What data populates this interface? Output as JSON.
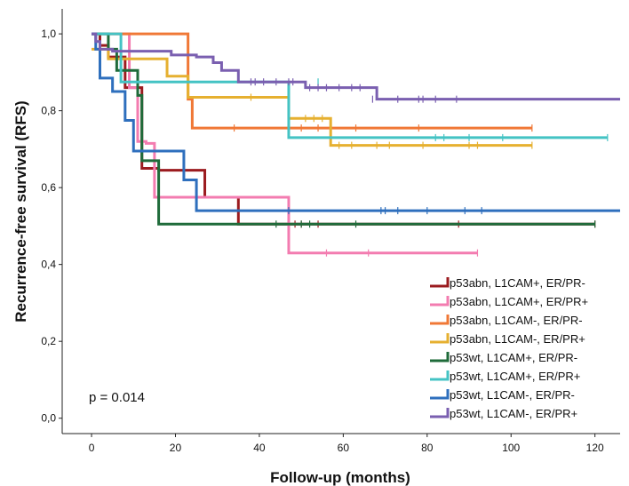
{
  "chart_data": {
    "type": "line",
    "step": true,
    "xlabel": "Follow-up (months)",
    "ylabel": "Recurrence-free survival (RFS)",
    "xlim": [
      -7,
      126
    ],
    "ylim": [
      -0.04,
      1.065
    ],
    "xticks": [
      0,
      20,
      40,
      60,
      80,
      100,
      120
    ],
    "yticks": [
      0.0,
      0.2,
      0.4,
      0.6,
      0.8,
      1.0
    ],
    "ytick_labels": [
      "0,0",
      "0,2",
      "0,4",
      "0,6",
      "0,8",
      "1,0"
    ],
    "grid": false,
    "legend_position": "bottom-right",
    "annotation": "p = 0.014",
    "series": [
      {
        "name": "p53abn, L1CAM+, ER/PR-",
        "color": "#9b1b1f",
        "x": [
          0,
          2,
          4,
          8,
          12,
          16,
          27,
          35,
          120
        ],
        "y": [
          1.0,
          0.97,
          0.94,
          0.86,
          0.65,
          0.645,
          0.575,
          0.505,
          0.505
        ],
        "censored": [
          [
            48.5,
            0.505
          ],
          [
            50,
            0.505
          ],
          [
            54,
            0.505
          ],
          [
            87.5,
            0.505
          ],
          [
            120,
            0.505
          ]
        ]
      },
      {
        "name": "p53abn, L1CAM+, ER/PR+",
        "color": "#f37cb0",
        "x": [
          0,
          9,
          11,
          13,
          15,
          47,
          92
        ],
        "y": [
          1.0,
          0.86,
          0.72,
          0.715,
          0.575,
          0.43,
          0.43
        ],
        "censored": [
          [
            56,
            0.43
          ],
          [
            66,
            0.43
          ],
          [
            92,
            0.43
          ]
        ]
      },
      {
        "name": "p53abn, L1CAM-, ER/PR-",
        "color": "#f07836",
        "x": [
          0,
          23,
          24,
          105
        ],
        "y": [
          1.0,
          0.83,
          0.755,
          0.755
        ],
        "censored": [
          [
            34,
            0.755
          ],
          [
            50,
            0.755
          ],
          [
            54,
            0.755
          ],
          [
            63,
            0.755
          ],
          [
            78,
            0.755
          ],
          [
            105,
            0.755
          ]
        ]
      },
      {
        "name": "p53abn, L1CAM-, ER/PR+",
        "color": "#e6b030",
        "x": [
          0,
          4,
          18,
          23,
          47,
          57,
          105
        ],
        "y": [
          0.96,
          0.935,
          0.89,
          0.835,
          0.78,
          0.71,
          0.71
        ],
        "censored": [
          [
            38,
            0.835
          ],
          [
            51,
            0.78
          ],
          [
            53,
            0.78
          ],
          [
            55,
            0.78
          ],
          [
            59,
            0.71
          ],
          [
            62,
            0.71
          ],
          [
            68,
            0.71
          ],
          [
            71,
            0.71
          ],
          [
            79,
            0.71
          ],
          [
            90,
            0.71
          ],
          [
            92,
            0.71
          ],
          [
            105,
            0.71
          ]
        ]
      },
      {
        "name": "p53wt, L1CAM+, ER/PR-",
        "color": "#1f6b3a",
        "x": [
          0,
          4,
          6,
          11,
          12,
          16,
          120
        ],
        "y": [
          1.0,
          0.96,
          0.905,
          0.84,
          0.67,
          0.505,
          0.505
        ],
        "censored": [
          [
            44,
            0.505
          ],
          [
            50,
            0.505
          ],
          [
            52,
            0.505
          ],
          [
            63,
            0.505
          ],
          [
            120,
            0.505
          ]
        ]
      },
      {
        "name": "p53wt, L1CAM+, ER/PR+",
        "color": "#44c3c4",
        "x": [
          0,
          7,
          47,
          123
        ],
        "y": [
          1.0,
          0.875,
          0.73,
          0.73
        ],
        "censored": [
          [
            54,
            0.875
          ],
          [
            82,
            0.73
          ],
          [
            84,
            0.73
          ],
          [
            90,
            0.73
          ],
          [
            98,
            0.73
          ],
          [
            123,
            0.73
          ]
        ]
      },
      {
        "name": "p53wt, L1CAM-, ER/PR-",
        "color": "#2e6fbd",
        "x": [
          0,
          1,
          2,
          5,
          8,
          10,
          14,
          22,
          25,
          126
        ],
        "y": [
          1.0,
          0.96,
          0.885,
          0.85,
          0.775,
          0.695,
          0.695,
          0.62,
          0.54,
          0.54
        ],
        "censored": [
          [
            47,
            0.54
          ],
          [
            69,
            0.54
          ],
          [
            70,
            0.54
          ],
          [
            73,
            0.54
          ],
          [
            80,
            0.54
          ],
          [
            89,
            0.54
          ],
          [
            93,
            0.54
          ]
        ]
      },
      {
        "name": "p53wt, L1CAM-, ER/PR+",
        "color": "#7a5fb0",
        "x": [
          0,
          1,
          2,
          5,
          19,
          25,
          29,
          31,
          35,
          51,
          66,
          68,
          126
        ],
        "y": [
          1.0,
          0.98,
          0.96,
          0.955,
          0.945,
          0.94,
          0.925,
          0.905,
          0.875,
          0.86,
          0.86,
          0.83,
          0.83
        ],
        "censored": [
          [
            38,
            0.875
          ],
          [
            39,
            0.875
          ],
          [
            41,
            0.875
          ],
          [
            44,
            0.875
          ],
          [
            47,
            0.875
          ],
          [
            48,
            0.875
          ],
          [
            52,
            0.86
          ],
          [
            54,
            0.86
          ],
          [
            56,
            0.86
          ],
          [
            59,
            0.86
          ],
          [
            62,
            0.86
          ],
          [
            64,
            0.86
          ],
          [
            67,
            0.83
          ],
          [
            73,
            0.83
          ],
          [
            78,
            0.83
          ],
          [
            79,
            0.83
          ],
          [
            82,
            0.83
          ],
          [
            87,
            0.83
          ]
        ]
      }
    ]
  }
}
